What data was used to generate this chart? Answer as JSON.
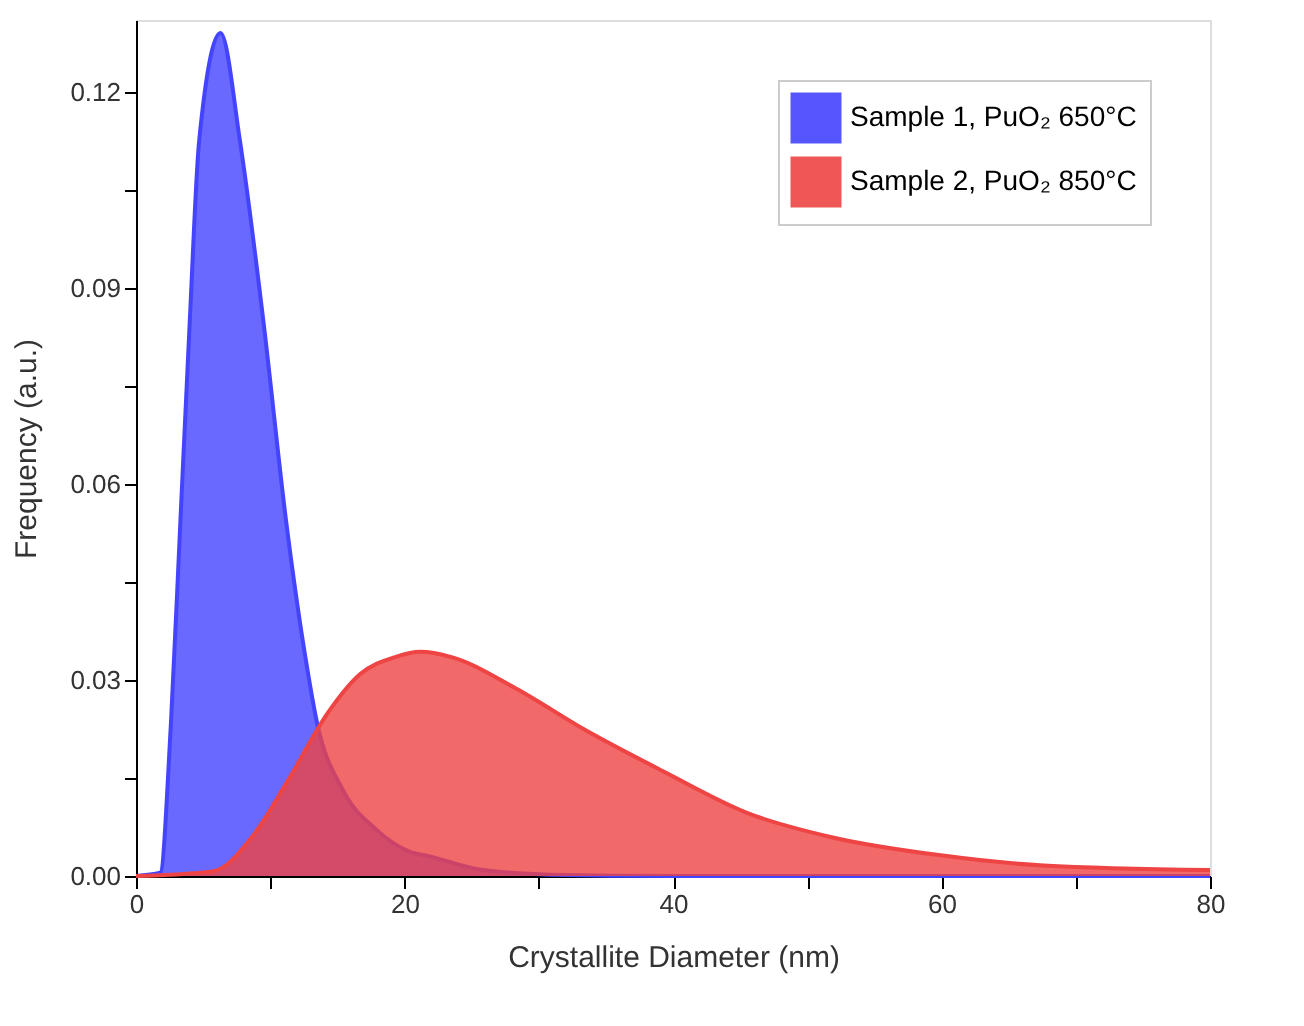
{
  "chart_data": {
    "type": "area",
    "xlabel": "Crystallite Diameter (nm)",
    "ylabel": "Frequency (a.u.)",
    "xlim": [
      0,
      80
    ],
    "ylim": [
      0,
      0.131
    ],
    "xticks": [
      0,
      {
        "value": 10,
        "label": null
      },
      20,
      {
        "value": 30,
        "label": null
      },
      40,
      {
        "value": 50,
        "label": null
      },
      60,
      {
        "value": 70,
        "label": null
      },
      80
    ],
    "yticks": [
      {
        "value": 0,
        "label": "0.00"
      },
      {
        "value": 0.015,
        "label": null
      },
      {
        "value": 0.03,
        "label": "0.03"
      },
      {
        "value": 0.045,
        "label": null
      },
      {
        "value": 0.06,
        "label": "0.06"
      },
      {
        "value": 0.075,
        "label": null
      },
      {
        "value": 0.09,
        "label": "0.09"
      },
      {
        "value": 0.105,
        "label": null
      },
      0.12
    ],
    "grid": false,
    "legend": "top right",
    "marker": "none",
    "series": [
      {
        "name": "Sample 1, PuO₂ 650°C",
        "color": "#4444ff",
        "x": [
          0,
          1.8,
          2.6,
          3.3,
          4.0,
          4.7,
          6.3,
          7.75,
          9.5,
          11.2,
          12.6,
          13.5,
          15.4,
          17.9,
          20.4,
          21.9,
          25.6,
          30.9,
          40,
          80
        ],
        "values": [
          0,
          0.0005,
          0.0233,
          0.054,
          0.0847,
          0.1124,
          0.129,
          0.1124,
          0.0847,
          0.054,
          0.0337,
          0.0233,
          0.0132,
          0.0071,
          0.0037,
          0.003,
          0.001,
          0.0002,
          0,
          0
        ]
      },
      {
        "name": "Sample 2, PuO₂ 850°C",
        "color": "#ee4444",
        "x": [
          0,
          5.7,
          8.8,
          11.4,
          14.3,
          16.7,
          19.3,
          21.2,
          23.5,
          28.3,
          33.5,
          39.3,
          45.6,
          51.9,
          59.8,
          67.6,
          80
        ],
        "values": [
          0,
          0.0007,
          0.0064,
          0.0149,
          0.025,
          0.0309,
          0.0335,
          0.0343,
          0.0335,
          0.0287,
          0.0223,
          0.016,
          0.0096,
          0.0059,
          0.0032,
          0.0016,
          0.0009
        ]
      }
    ]
  }
}
